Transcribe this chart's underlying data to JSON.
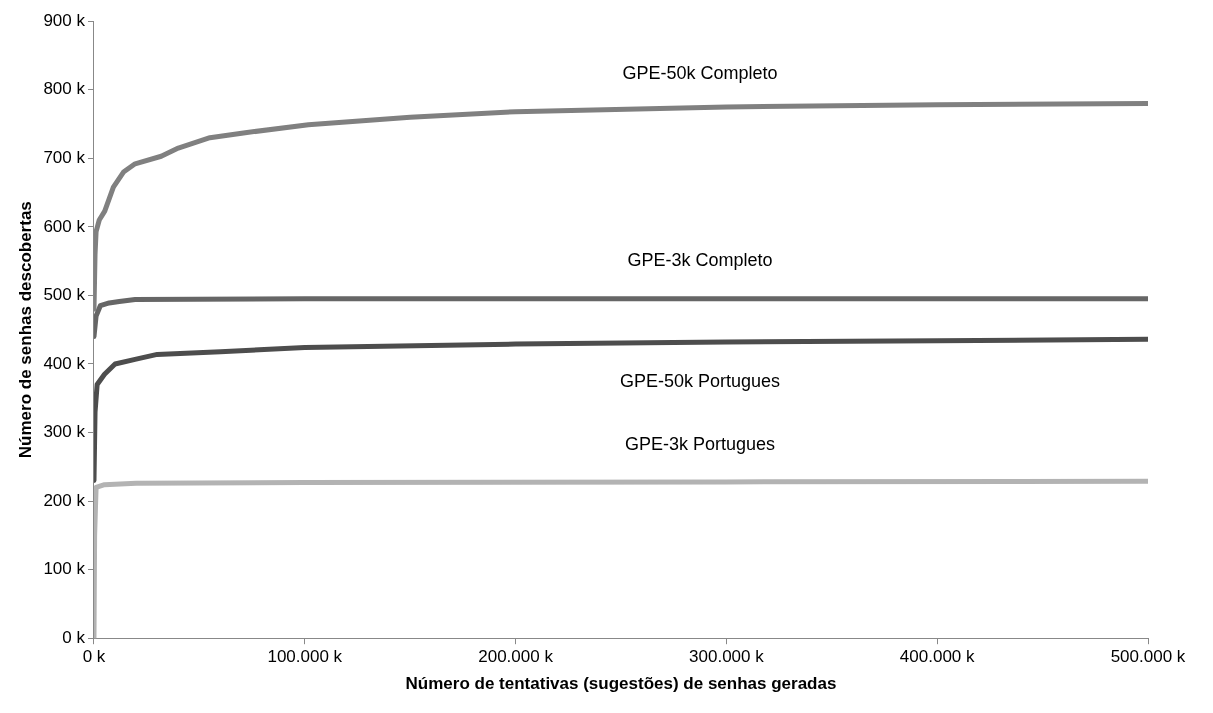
{
  "chart_data": {
    "type": "line",
    "xlabel": "Número de tentativas (sugestões) de senhas geradas",
    "ylabel": "Número de senhas descobertas",
    "xlim": [
      0,
      500000
    ],
    "ylim": [
      0,
      900
    ],
    "xticks": [
      {
        "value": 0,
        "label": "0 k"
      },
      {
        "value": 100000,
        "label": "100.000 k"
      },
      {
        "value": 200000,
        "label": "200.000 k"
      },
      {
        "value": 300000,
        "label": "300.000 k"
      },
      {
        "value": 400000,
        "label": "400.000 k"
      },
      {
        "value": 500000,
        "label": "500.000 k"
      }
    ],
    "yticks": [
      {
        "value": 0,
        "label": "0 k"
      },
      {
        "value": 100,
        "label": "100 k"
      },
      {
        "value": 200,
        "label": "200 k"
      },
      {
        "value": 300,
        "label": "300 k"
      },
      {
        "value": 400,
        "label": "400 k"
      },
      {
        "value": 500,
        "label": "500 k"
      },
      {
        "value": 600,
        "label": "600 k"
      },
      {
        "value": 700,
        "label": "700 k"
      },
      {
        "value": 800,
        "label": "800 k"
      },
      {
        "value": 900,
        "label": "900 k"
      }
    ],
    "grid": false,
    "legend": false,
    "marker": "none",
    "line_style": "solid",
    "series": [
      {
        "name": "GPE-50k Completo",
        "color": "#808080",
        "x": [
          0,
          500,
          1000,
          2500,
          5100,
          9200,
          14000,
          19500,
          31900,
          40000,
          55000,
          70900,
          101700,
          150000,
          200000,
          300000,
          400000,
          500000
        ],
        "values": [
          480,
          560,
          593,
          610,
          623,
          658,
          680,
          692,
          703,
          715,
          730,
          737,
          749,
          760,
          768,
          775,
          778,
          780
        ]
      },
      {
        "name": "GPE-3k Completo",
        "color": "#666666",
        "x": [
          0,
          1000,
          3000,
          7200,
          12000,
          19500,
          100000,
          500000
        ],
        "values": [
          440,
          470,
          485,
          489,
          491,
          494,
          495,
          495
        ]
      },
      {
        "name": "GPE-50k Portugues",
        "color": "#4d4d4d",
        "x": [
          0,
          500,
          1500,
          5000,
          10000,
          20000,
          30000,
          60000,
          100000,
          200000,
          300000,
          400000,
          500000
        ],
        "values": [
          230,
          330,
          370,
          385,
          400,
          407,
          414,
          418,
          424,
          429,
          432,
          434,
          436
        ]
      },
      {
        "name": "GPE-3k Portugues",
        "color": "#b3b3b3",
        "x": [
          0,
          300,
          1000,
          5000,
          20000,
          100000,
          300000,
          500000
        ],
        "values": [
          0,
          150,
          220,
          224,
          226,
          227,
          228,
          229
        ]
      }
    ]
  }
}
